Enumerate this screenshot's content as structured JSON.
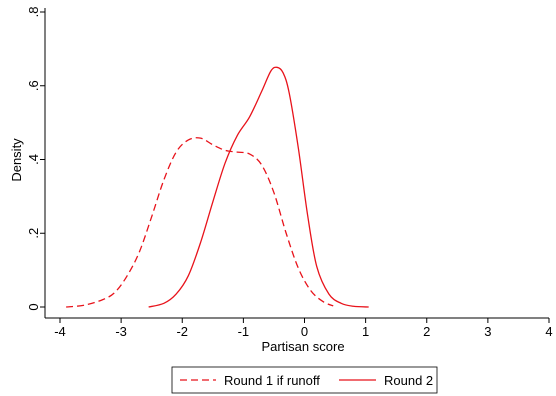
{
  "chart_data": {
    "type": "line",
    "title": "",
    "xlabel": "Partisan score",
    "ylabel": "Density",
    "xlim": [
      -4,
      4
    ],
    "ylim": [
      0,
      0.8
    ],
    "xticks": [
      -4,
      -3,
      -2,
      -1,
      0,
      1,
      2,
      3,
      4
    ],
    "xtick_labels": [
      "-4",
      "-3",
      "-2",
      "-1",
      "0",
      "1",
      "2",
      "3",
      "4"
    ],
    "yticks": [
      0,
      0.2,
      0.4,
      0.6,
      0.8
    ],
    "ytick_labels": [
      "0",
      ".2",
      ".4",
      ".6",
      ".8"
    ],
    "grid": false,
    "legend_position": "bottom",
    "series": [
      {
        "name": "Round 1 if runoff",
        "style": "dashed",
        "color": "#e8131b",
        "x": [
          -3.9,
          -3.6,
          -3.3,
          -3.1,
          -2.9,
          -2.7,
          -2.5,
          -2.3,
          -2.1,
          -1.9,
          -1.7,
          -1.5,
          -1.3,
          -1.1,
          -0.9,
          -0.7,
          -0.5,
          -0.3,
          -0.1,
          0.1,
          0.3,
          0.47
        ],
        "y": [
          0.0,
          0.005,
          0.02,
          0.04,
          0.085,
          0.15,
          0.245,
          0.345,
          0.42,
          0.453,
          0.458,
          0.44,
          0.425,
          0.42,
          0.415,
          0.385,
          0.31,
          0.2,
          0.105,
          0.045,
          0.015,
          0.003
        ]
      },
      {
        "name": "Round 2",
        "style": "solid",
        "color": "#e8131b",
        "x": [
          -2.55,
          -2.3,
          -2.1,
          -1.9,
          -1.7,
          -1.5,
          -1.3,
          -1.1,
          -0.9,
          -0.7,
          -0.55,
          -0.45,
          -0.35,
          -0.25,
          -0.1,
          0.05,
          0.2,
          0.4,
          0.6,
          0.8,
          1.05
        ],
        "y": [
          0.0,
          0.01,
          0.035,
          0.085,
          0.175,
          0.285,
          0.39,
          0.465,
          0.515,
          0.585,
          0.64,
          0.65,
          0.635,
          0.58,
          0.43,
          0.25,
          0.11,
          0.035,
          0.01,
          0.002,
          0.0
        ]
      }
    ]
  }
}
